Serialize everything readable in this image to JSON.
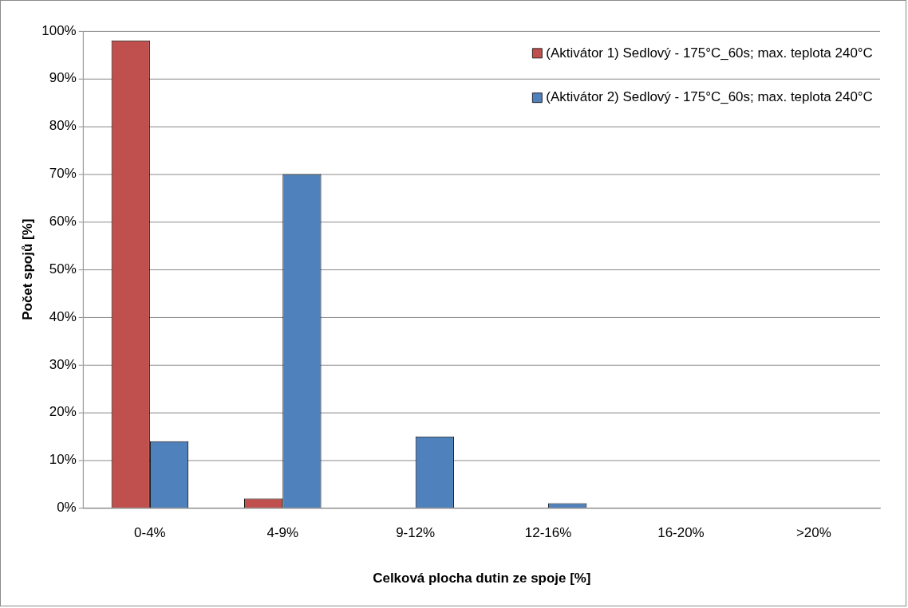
{
  "chart_data": {
    "type": "bar",
    "xlabel": "Celková plocha dutin ze spoje [%]",
    "ylabel": "Počet spojů [%]",
    "categories": [
      "0-4%",
      "4-9%",
      "9-12%",
      "12-16%",
      "16-20%",
      ">20%"
    ],
    "series": [
      {
        "name": "(Aktivátor 1) Sedlový - 175°C_60s; max. teplota 240°C",
        "color": "#c0504d",
        "values": [
          98,
          2,
          0,
          0,
          0,
          0
        ]
      },
      {
        "name": "(Aktivátor 2) Sedlový - 175°C_60s; max. teplota 240°C",
        "color": "#4f81bd",
        "values": [
          14,
          70,
          15,
          1,
          0,
          0
        ]
      }
    ],
    "ylim": [
      0,
      100
    ],
    "yticks": [
      {
        "value": 0,
        "label": "0%"
      },
      {
        "value": 10,
        "label": "10%"
      },
      {
        "value": 20,
        "label": "20%"
      },
      {
        "value": 30,
        "label": "30%"
      },
      {
        "value": 40,
        "label": "40%"
      },
      {
        "value": 50,
        "label": "50%"
      },
      {
        "value": 60,
        "label": "60%"
      },
      {
        "value": 70,
        "label": "70%"
      },
      {
        "value": 80,
        "label": "80%"
      },
      {
        "value": 90,
        "label": "90%"
      },
      {
        "value": 100,
        "label": "100%"
      }
    ],
    "grid": "y",
    "legend": "top right"
  }
}
